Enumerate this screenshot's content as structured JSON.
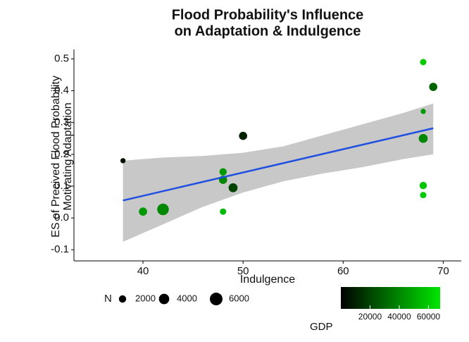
{
  "chart_data": {
    "type": "scatter",
    "title": [
      "Flood Probability's Influence",
      "on Adaptation & Indulgence"
    ],
    "x_label": "Indulgence",
    "y_label": [
      "ES of Precived Flood Probability",
      "Motivating Adaptation"
    ],
    "xlim": [
      33.1,
      71.8
    ],
    "xticks": [
      40,
      50,
      60,
      70
    ],
    "ylim": [
      -0.135,
      0.53
    ],
    "yticks": [
      -0.1,
      {
        "value": 0,
        "label": "0.0"
      },
      0.1,
      0.2,
      0.3,
      0.4,
      0.5
    ],
    "points": {
      "x": [
        38,
        40,
        42,
        48,
        48,
        48,
        49,
        50,
        68,
        68,
        68,
        68,
        68,
        69
      ],
      "y": [
        0.18,
        0.02,
        0.027,
        0.145,
        0.12,
        0.02,
        0.095,
        0.258,
        0.49,
        0.335,
        0.25,
        0.102,
        0.072,
        0.412
      ],
      "N": [
        1000,
        2500,
        5000,
        2000,
        2500,
        1500,
        3000,
        2500,
        1500,
        1000,
        3000,
        2000,
        1500,
        2500
      ],
      "GDP": [
        5000,
        45000,
        40000,
        45000,
        40000,
        55000,
        20000,
        10000,
        60000,
        45000,
        40000,
        58000,
        60000,
        30000
      ]
    },
    "fit": {
      "color": "#2050e0",
      "x": [
        38,
        69
      ],
      "y": [
        0.055,
        0.282
      ]
    },
    "band": {
      "color": "#c8c8c8",
      "x": [
        38,
        42,
        46,
        50,
        54,
        58,
        62,
        66,
        69
      ],
      "lower": [
        -0.075,
        -0.02,
        0.035,
        0.08,
        0.115,
        0.14,
        0.16,
        0.185,
        0.2
      ],
      "upper": [
        0.18,
        0.19,
        0.195,
        0.205,
        0.225,
        0.26,
        0.295,
        0.33,
        0.36
      ]
    },
    "size_legend": {
      "title": "N",
      "values": [
        2000,
        4000,
        6000
      ]
    },
    "color_legend": {
      "title": "GDP",
      "colors": [
        "#000000",
        "#00e600"
      ],
      "lim": [
        0,
        68000
      ],
      "ticks": [
        20000,
        40000,
        60000
      ]
    }
  }
}
